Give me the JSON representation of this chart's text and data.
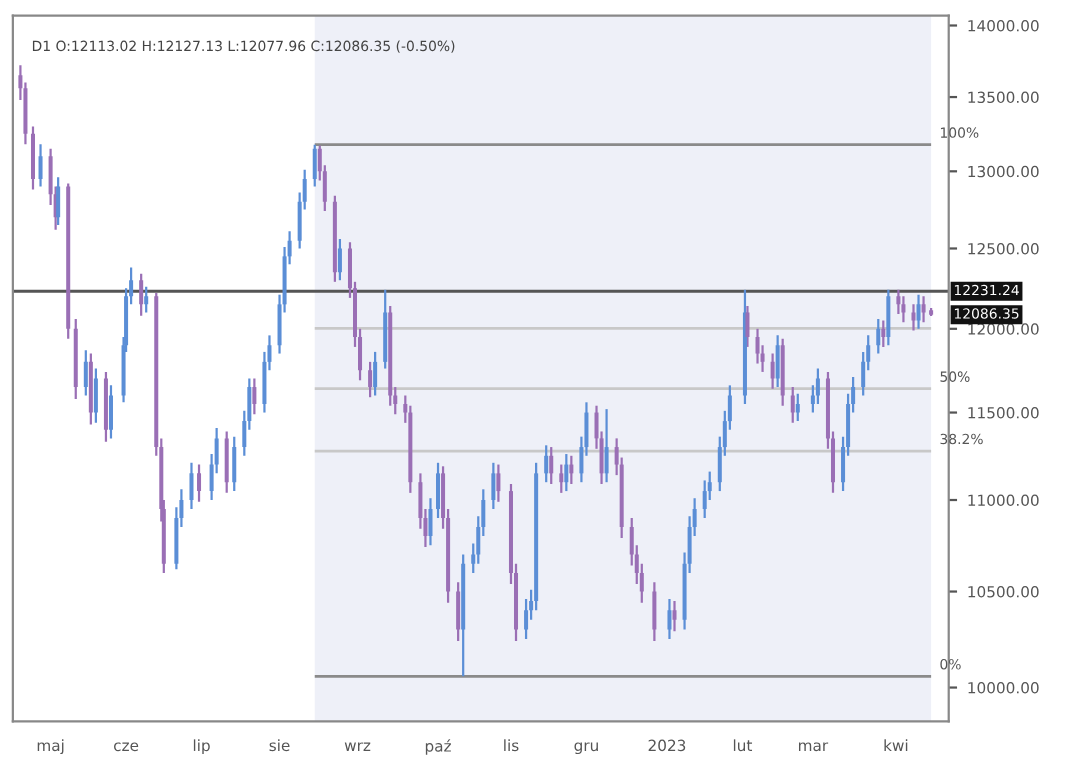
{
  "chart_data": {
    "type": "candlestick",
    "annotations": [
      "D1 O:12113.02 H:12127.13 L:12077.96 C:12086.35 (-0.50%)",
      {
        "text": "12086.35",
        "x": "2023-04-17",
        "y": 12086.35
      },
      {
        "text": "100%",
        "x": "2023-04-17",
        "y": 13177
      },
      {
        "text": "50%",
        "x": "2023-04-17",
        "y": 11640
      },
      {
        "text": "38.2%",
        "x": "2023-04-17",
        "y": 11277
      },
      {
        "text": "0%",
        "x": "2023-04-17",
        "y": 10057
      }
    ],
    "colors": [
      "#9a6fb5",
      "#9a6fb5",
      "#9a6fb5",
      "#5b8ed6",
      "#9a6fb5",
      "#9a6fb5",
      "#5b8ed6",
      "#9a6fb5",
      "#9a6fb5",
      "#5b8ed6",
      "#9a6fb5",
      "#5b8ed6",
      "#9a6fb5",
      "#5b8ed6",
      "#5b8ed6",
      "#5b8ed6",
      "#5b8ed6",
      "#9a6fb5",
      "#5b8ed6",
      "#9a6fb5",
      "#9a6fb5",
      "#9a6fb5",
      "#5b8ed6",
      "#5b8ed6",
      "#5b8ed6",
      "#9a6fb5",
      "#5b8ed6",
      "#5b8ed6",
      "#9a6fb5",
      "#5b8ed6",
      "#5b8ed6",
      "#5b8ed6",
      "#9a6fb5",
      "#5b8ed6",
      "#5b8ed6",
      "#5b8ed6",
      "#5b8ed6",
      "#5b8ed6",
      "#5b8ed6",
      "#5b8ed6",
      "#5b8ed6",
      "#9a6fb5",
      "#9a6fb5",
      "#9a6fb5",
      "#5b8ed6",
      "#9a6fb5",
      "#9a6fb5",
      "#9a6fb5",
      "#9a6fb5",
      "#5b8ed6",
      "#5b8ed6",
      "#9a6fb5",
      "#9a6fb5",
      "#9a6fb5",
      "#9a6fb5",
      "#9a6fb5",
      "#9a6fb5",
      "#5b8ed6",
      "#5b8ed6",
      "#9a6fb5",
      "#9a6fb5",
      "#9a6fb5",
      "#5b8ed6",
      "#5b8ed6",
      "#5b8ed6",
      "#5b8ed6",
      "#5b8ed6",
      "#9a6fb5",
      "#9a6fb5",
      "#9a6fb5",
      "#5b8ed6",
      "#5b8ed6",
      "#5b8ed6",
      "#5b8ed6",
      "#9a6fb5",
      "#9a6fb5",
      "#5b8ed6",
      "#9a6fb5",
      "#5b8ed6",
      "#5b8ed6",
      "#9a6fb5",
      "#9a6fb5",
      "#5b8ed6",
      "#9a6fb5",
      "#9a6fb5",
      "#9a6fb5",
      "#9a6fb5",
      "#9a6fb5",
      "#9a6fb5",
      "#5b8ed6",
      "#9a6fb5",
      "#5b8ed6",
      "#5b8ed6",
      "#5b8ed6",
      "#5b8ed6",
      "#5b8ed6",
      "#5b8ed6",
      "#5b8ed6",
      "#5b8ed6",
      "#5b8ed6",
      "#9a6fb5",
      "#9a6fb5",
      "#9a6fb5",
      "#9a6fb5",
      "#5b8ed6",
      "#9a6fb5",
      "#9a6fb5",
      "#5b8ed6",
      "#5b8ed6",
      "#5b8ed6",
      "#9a6fb5",
      "#9a6fb5",
      "#5b8ed6",
      "#5b8ed6",
      "#5b8ed6",
      "#5b8ed6",
      "#5b8ed6",
      "#5b8ed6",
      "#9a6fb5",
      "#5b8ed6",
      "#9a6fb5",
      "#9a6fb5",
      "#9a6fb5",
      "#5b8ed6",
      "#9a6fb5",
      "#9a6fb5"
    ],
    "log": true,
    "ylim": [
      9830,
      14070
    ],
    "yticks": [
      {
        "value": 10000,
        "label": "10000.00"
      },
      {
        "value": 10500,
        "label": "10500.00"
      },
      {
        "value": 11000,
        "label": "11000.00"
      },
      {
        "value": 11500,
        "label": "11500.00"
      },
      {
        "value": 12000,
        "label": "12000.00"
      },
      {
        "value": 12500,
        "label": "12500.00"
      },
      {
        "value": 13000,
        "label": "13000.00"
      },
      {
        "value": 13500,
        "label": "13500.00"
      },
      {
        "value": 14000,
        "label": "14000.00"
      }
    ],
    "xlim": [
      "2022-04-17",
      "2023-04-24"
    ],
    "xticks": [
      {
        "value": "2022-05-02",
        "label": "maj"
      },
      {
        "value": "2022-06-01",
        "label": "cze"
      },
      {
        "value": "2022-07-01",
        "label": "lip"
      },
      {
        "value": "2022-08-01",
        "label": "sie"
      },
      {
        "value": "2022-09-01",
        "label": "wrz"
      },
      {
        "value": "2022-10-03",
        "label": "paź"
      },
      {
        "value": "2022-11-01",
        "label": "lis"
      },
      {
        "value": "2022-12-01",
        "label": "gru"
      },
      {
        "value": "2023-01-02",
        "label": "2023"
      },
      {
        "value": "2023-02-01",
        "label": "lut"
      },
      {
        "value": "2023-03-01",
        "label": "mar"
      },
      {
        "value": "2023-04-03",
        "label": "kwi"
      }
    ],
    "bands": [
      {
        "axis": "x",
        "from": "2022-08-15",
        "to": "2023-04-17",
        "color": "#eef0f8"
      }
    ],
    "ref_lines": [
      {
        "axis": "y",
        "value": 13177,
        "label": null,
        "color": "#8a8a8a"
      },
      {
        "axis": "y",
        "value": 12003,
        "label": null,
        "color": "#c8c8c8"
      },
      {
        "axis": "y",
        "value": 11640,
        "label": null,
        "color": "#c8c8c8"
      },
      {
        "axis": "y",
        "value": 11277,
        "label": null,
        "color": "#c8c8c8"
      },
      {
        "axis": "y",
        "value": 10057,
        "label": null,
        "color": "#8a8a8a"
      },
      {
        "axis": "y",
        "value": 12231.24,
        "label": "12231.24",
        "color": "#555555"
      }
    ],
    "x": [
      "2022-04-20",
      "2022-04-22",
      "2022-04-25",
      "2022-04-28",
      "2022-05-02",
      "2022-05-04",
      "2022-05-05",
      "2022-05-09",
      "2022-05-12",
      "2022-05-16",
      "2022-05-18",
      "2022-05-20",
      "2022-05-24",
      "2022-05-26",
      "2022-05-31",
      "2022-06-01",
      "2022-06-03",
      "2022-06-07",
      "2022-06-09",
      "2022-06-13",
      "2022-06-15",
      "2022-06-16",
      "2022-06-21",
      "2022-06-23",
      "2022-06-27",
      "2022-06-30",
      "2022-07-05",
      "2022-07-07",
      "2022-07-11",
      "2022-07-14",
      "2022-07-18",
      "2022-07-20",
      "2022-07-22",
      "2022-07-26",
      "2022-07-28",
      "2022-08-01",
      "2022-08-03",
      "2022-08-05",
      "2022-08-09",
      "2022-08-11",
      "2022-08-15",
      "2022-08-17",
      "2022-08-19",
      "2022-08-23",
      "2022-08-25",
      "2022-08-29",
      "2022-08-31",
      "2022-09-02",
      "2022-09-06",
      "2022-09-08",
      "2022-09-12",
      "2022-09-14",
      "2022-09-16",
      "2022-09-20",
      "2022-09-22",
      "2022-09-26",
      "2022-09-28",
      "2022-09-30",
      "2022-10-03",
      "2022-10-05",
      "2022-10-07",
      "2022-10-11",
      "2022-10-13",
      "2022-10-17",
      "2022-10-19",
      "2022-10-21",
      "2022-10-25",
      "2022-10-27",
      "2022-11-01",
      "2022-11-03",
      "2022-11-07",
      "2022-11-09",
      "2022-11-11",
      "2022-11-15",
      "2022-11-17",
      "2022-11-21",
      "2022-11-23",
      "2022-11-25",
      "2022-11-29",
      "2022-12-01",
      "2022-12-05",
      "2022-12-07",
      "2022-12-09",
      "2022-12-13",
      "2022-12-15",
      "2022-12-19",
      "2022-12-21",
      "2022-12-23",
      "2022-12-28",
      "2023-01-03",
      "2023-01-05",
      "2023-01-09",
      "2023-01-11",
      "2023-01-13",
      "2023-01-17",
      "2023-01-19",
      "2023-01-23",
      "2023-01-25",
      "2023-01-27",
      "2023-02-02",
      "2023-02-03",
      "2023-02-07",
      "2023-02-09",
      "2023-02-13",
      "2023-02-15",
      "2023-02-17",
      "2023-02-21",
      "2023-02-23",
      "2023-03-01",
      "2023-03-03",
      "2023-03-07",
      "2023-03-09",
      "2023-03-13",
      "2023-03-15",
      "2023-03-17",
      "2023-03-21",
      "2023-03-23",
      "2023-03-27",
      "2023-03-29",
      "2023-03-31",
      "2023-04-04",
      "2023-04-06",
      "2023-04-10",
      "2023-04-12",
      "2023-04-14",
      "2023-04-17"
    ],
    "ohlc": [
      [
        13650,
        13720,
        13480,
        13560
      ],
      [
        13560,
        13600,
        13180,
        13250
      ],
      [
        13250,
        13300,
        12880,
        12950
      ],
      [
        12950,
        13180,
        12900,
        13100
      ],
      [
        13100,
        13150,
        12780,
        12850
      ],
      [
        12850,
        12900,
        12620,
        12700
      ],
      [
        12700,
        12960,
        12650,
        12900
      ],
      [
        12900,
        12920,
        11940,
        12000
      ],
      [
        12000,
        12060,
        11580,
        11650
      ],
      [
        11650,
        11870,
        11600,
        11800
      ],
      [
        11800,
        11850,
        11430,
        11500
      ],
      [
        11500,
        11760,
        11440,
        11700
      ],
      [
        11700,
        11740,
        11330,
        11400
      ],
      [
        11400,
        11660,
        11350,
        11600
      ],
      [
        11600,
        11950,
        11560,
        11900
      ],
      [
        11900,
        12250,
        11860,
        12200
      ],
      [
        12200,
        12380,
        12150,
        12300
      ],
      [
        12300,
        12340,
        12080,
        12150
      ],
      [
        12150,
        12260,
        12100,
        12200
      ],
      [
        12200,
        12220,
        11250,
        11300
      ],
      [
        11300,
        11350,
        10880,
        10950
      ],
      [
        10950,
        11000,
        10600,
        10650
      ],
      [
        10650,
        10960,
        10620,
        10900
      ],
      [
        10900,
        11060,
        10850,
        11000
      ],
      [
        11000,
        11210,
        10950,
        11150
      ],
      [
        11150,
        11200,
        10990,
        11050
      ],
      [
        11050,
        11260,
        11000,
        11200
      ],
      [
        11200,
        11410,
        11150,
        11350
      ],
      [
        11350,
        11390,
        11040,
        11100
      ],
      [
        11100,
        11360,
        11050,
        11300
      ],
      [
        11300,
        11510,
        11250,
        11450
      ],
      [
        11450,
        11700,
        11400,
        11650
      ],
      [
        11650,
        11700,
        11490,
        11550
      ],
      [
        11550,
        11860,
        11500,
        11800
      ],
      [
        11800,
        11960,
        11750,
        11900
      ],
      [
        11900,
        12210,
        11850,
        12150
      ],
      [
        12150,
        12510,
        12100,
        12450
      ],
      [
        12450,
        12610,
        12400,
        12550
      ],
      [
        12550,
        12860,
        12500,
        12800
      ],
      [
        12800,
        13010,
        12750,
        12950
      ],
      [
        12950,
        13177,
        12900,
        13150
      ],
      [
        13150,
        13170,
        12940,
        13000
      ],
      [
        13000,
        13040,
        12740,
        12800
      ],
      [
        12800,
        12840,
        12290,
        12350
      ],
      [
        12350,
        12560,
        12300,
        12500
      ],
      [
        12500,
        12540,
        12190,
        12250
      ],
      [
        12250,
        12290,
        11890,
        11950
      ],
      [
        11950,
        12000,
        11690,
        11750
      ],
      [
        11750,
        11800,
        11590,
        11650
      ],
      [
        11650,
        11860,
        11600,
        11800
      ],
      [
        11800,
        12240,
        11760,
        12100
      ],
      [
        12100,
        12140,
        11540,
        11600
      ],
      [
        11600,
        11650,
        11490,
        11550
      ],
      [
        11550,
        11600,
        11440,
        11500
      ],
      [
        11500,
        11540,
        11040,
        11100
      ],
      [
        11100,
        11150,
        10840,
        10900
      ],
      [
        10900,
        10950,
        10740,
        10800
      ],
      [
        10800,
        11010,
        10750,
        10950
      ],
      [
        10950,
        11210,
        10900,
        11150
      ],
      [
        11150,
        11190,
        10840,
        10900
      ],
      [
        10900,
        10950,
        10440,
        10500
      ],
      [
        10500,
        10550,
        10240,
        10300
      ],
      [
        10300,
        10700,
        10057,
        10650
      ],
      [
        10650,
        10760,
        10600,
        10700
      ],
      [
        10700,
        10910,
        10650,
        10850
      ],
      [
        10850,
        11060,
        10800,
        11000
      ],
      [
        11000,
        11210,
        10950,
        11150
      ],
      [
        11150,
        11200,
        10990,
        11050
      ],
      [
        11050,
        11090,
        10540,
        10600
      ],
      [
        10600,
        10650,
        10240,
        10300
      ],
      [
        10300,
        10460,
        10250,
        10400
      ],
      [
        10400,
        10510,
        10350,
        10450
      ],
      [
        10450,
        11210,
        10400,
        11150
      ],
      [
        11150,
        11310,
        11100,
        11250
      ],
      [
        11250,
        11300,
        11090,
        11150
      ],
      [
        11150,
        11200,
        11040,
        11100
      ],
      [
        11100,
        11260,
        11050,
        11200
      ],
      [
        11200,
        11250,
        11090,
        11150
      ],
      [
        11150,
        11360,
        11100,
        11300
      ],
      [
        11300,
        11560,
        11250,
        11500
      ],
      [
        11500,
        11540,
        11290,
        11350
      ],
      [
        11350,
        11390,
        11090,
        11150
      ],
      [
        11150,
        11520,
        11100,
        11300
      ],
      [
        11300,
        11350,
        11140,
        11200
      ],
      [
        11200,
        11240,
        10790,
        10850
      ],
      [
        10850,
        10900,
        10640,
        10700
      ],
      [
        10700,
        10750,
        10540,
        10600
      ],
      [
        10600,
        10650,
        10440,
        10500
      ],
      [
        10500,
        10550,
        10240,
        10300
      ],
      [
        10300,
        10460,
        10250,
        10400
      ],
      [
        10400,
        10450,
        10290,
        10350
      ],
      [
        10350,
        10710,
        10300,
        10650
      ],
      [
        10650,
        10910,
        10600,
        10850
      ],
      [
        10850,
        11010,
        10800,
        10950
      ],
      [
        10950,
        11110,
        10900,
        11050
      ],
      [
        11050,
        11160,
        11000,
        11100
      ],
      [
        11100,
        11360,
        11050,
        11300
      ],
      [
        11300,
        11510,
        11250,
        11450
      ],
      [
        11450,
        11660,
        11400,
        11600
      ],
      [
        11600,
        12240,
        11550,
        12100
      ],
      [
        12100,
        12140,
        11890,
        11950
      ],
      [
        11950,
        12000,
        11790,
        11850
      ],
      [
        11850,
        11900,
        11740,
        11800
      ],
      [
        11800,
        11850,
        11640,
        11700
      ],
      [
        11700,
        11960,
        11650,
        11900
      ],
      [
        11900,
        11940,
        11540,
        11600
      ],
      [
        11600,
        11650,
        11440,
        11500
      ],
      [
        11500,
        11610,
        11450,
        11550
      ],
      [
        11550,
        11660,
        11500,
        11600
      ],
      [
        11600,
        11760,
        11550,
        11700
      ],
      [
        11700,
        11740,
        11290,
        11350
      ],
      [
        11350,
        11390,
        11040,
        11100
      ],
      [
        11100,
        11360,
        11050,
        11300
      ],
      [
        11300,
        11610,
        11250,
        11550
      ],
      [
        11550,
        11710,
        11500,
        11650
      ],
      [
        11650,
        11860,
        11600,
        11800
      ],
      [
        11800,
        11960,
        11750,
        11900
      ],
      [
        11900,
        12060,
        11850,
        12000
      ],
      [
        12000,
        12050,
        11890,
        11950
      ],
      [
        11950,
        12240,
        11900,
        12200
      ],
      [
        12200,
        12240,
        12090,
        12150
      ],
      [
        12150,
        12200,
        12040,
        12100
      ],
      [
        12100,
        12150,
        11990,
        12050
      ],
      [
        12050,
        12210,
        12000,
        12150
      ],
      [
        12150,
        12200,
        12040,
        12100
      ],
      [
        12113.02,
        12127.13,
        12077.96,
        12086.35
      ]
    ]
  }
}
